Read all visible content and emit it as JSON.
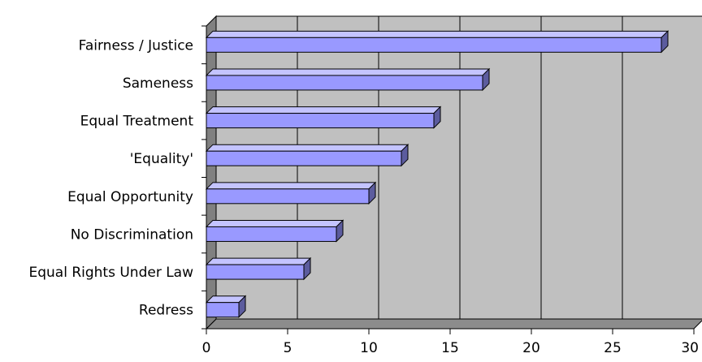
{
  "chart_data": {
    "type": "bar",
    "orientation": "horizontal",
    "categories": [
      "Fairness / Justice",
      "Sameness",
      "Equal Treatment",
      "'Equality'",
      "Equal Opportunity",
      "No Discrimination",
      "Equal Rights Under Law",
      "Redress"
    ],
    "values": [
      28,
      17,
      14,
      12,
      10,
      8,
      6,
      2
    ],
    "xlim": [
      0,
      30
    ],
    "xticks": [
      0,
      5,
      10,
      15,
      20,
      25,
      30
    ],
    "title": "",
    "xlabel": "",
    "ylabel": "",
    "grid": true,
    "style": "3d",
    "colors": {
      "bar_front": "#9999ff",
      "bar_top": "#c4c4ff",
      "bar_side": "#5c5c9e",
      "plot_back": "#c0c0c0",
      "plot_left_wall": "#808080",
      "plot_floor": "#8c8c8c"
    }
  }
}
